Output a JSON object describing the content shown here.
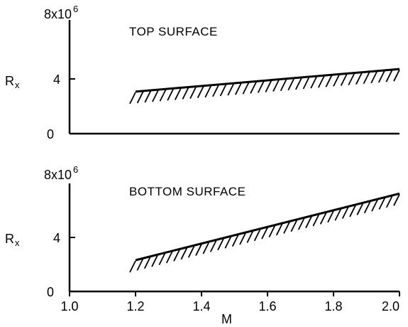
{
  "chart_data": [
    {
      "type": "line",
      "title": "TOP SURFACE",
      "xlabel": "",
      "ylabel": "R",
      "ylabel_sub": "x",
      "xlim": [
        1.0,
        2.0
      ],
      "ylim": [
        0,
        8
      ],
      "ytick_labels": [
        "0",
        "4",
        "8x10",
        "6"
      ],
      "x": [
        1.2,
        2.0
      ],
      "series": [
        {
          "values": [
            2.8,
            4.3
          ]
        }
      ],
      "hatch": "below",
      "grid": false,
      "legend": "none"
    },
    {
      "type": "line",
      "title": "BOTTOM SURFACE",
      "xlabel": "M",
      "ylabel": "R",
      "ylabel_sub": "x",
      "xlim": [
        1.0,
        2.0
      ],
      "ylim": [
        0,
        8
      ],
      "ytick_labels": [
        "0",
        "4",
        "8x10",
        "6"
      ],
      "xtick_labels": [
        "1.0",
        "1.2",
        "1.4",
        "1.6",
        "1.8",
        "2.0"
      ],
      "x": [
        1.2,
        2.0
      ],
      "series": [
        {
          "values": [
            2.3,
            7.2
          ]
        }
      ],
      "hatch": "below",
      "grid": false,
      "legend": "none"
    }
  ]
}
